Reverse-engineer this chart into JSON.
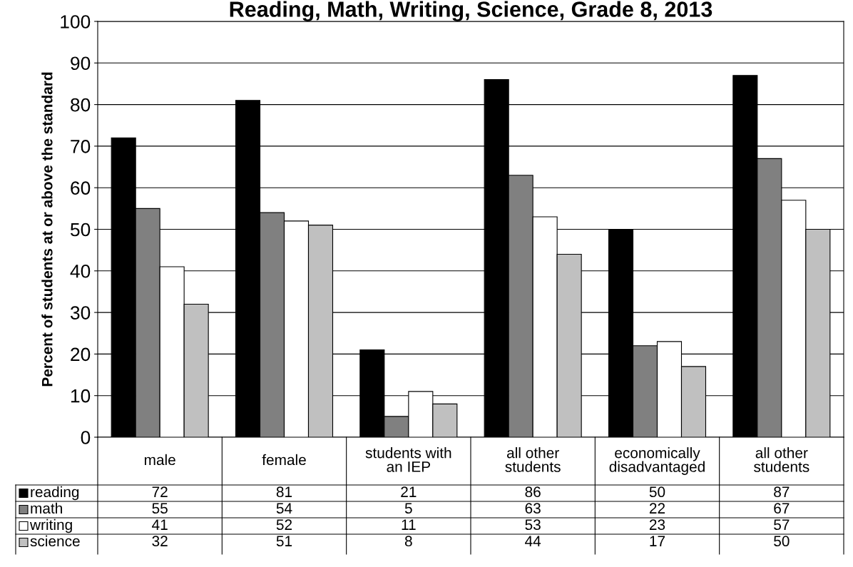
{
  "chart_data": {
    "type": "bar",
    "title": "Reading, Math, Writing, Science, Grade 8, 2013",
    "ylabel": "Percent of students at or above the standard",
    "categories": [
      "male",
      "female",
      "students with\nan IEP",
      "all other\nstudents",
      "economically\ndisadvantaged",
      "all other\nstudents"
    ],
    "series": [
      {
        "name": "reading",
        "color": "#000000",
        "values": [
          72,
          81,
          21,
          86,
          50,
          87
        ]
      },
      {
        "name": "math",
        "color": "#808080",
        "values": [
          55,
          54,
          5,
          63,
          22,
          67
        ]
      },
      {
        "name": "writing",
        "color": "#ffffff",
        "values": [
          41,
          52,
          11,
          53,
          23,
          57
        ]
      },
      {
        "name": "science",
        "color": "#c0c0c0",
        "values": [
          32,
          51,
          8,
          44,
          17,
          50
        ]
      }
    ],
    "ylim": [
      0,
      100
    ],
    "yticks": [
      0,
      10,
      20,
      30,
      40,
      50,
      60,
      70,
      80,
      90,
      100
    ],
    "grid": "y",
    "legend": "bottom",
    "data_labels": true
  }
}
